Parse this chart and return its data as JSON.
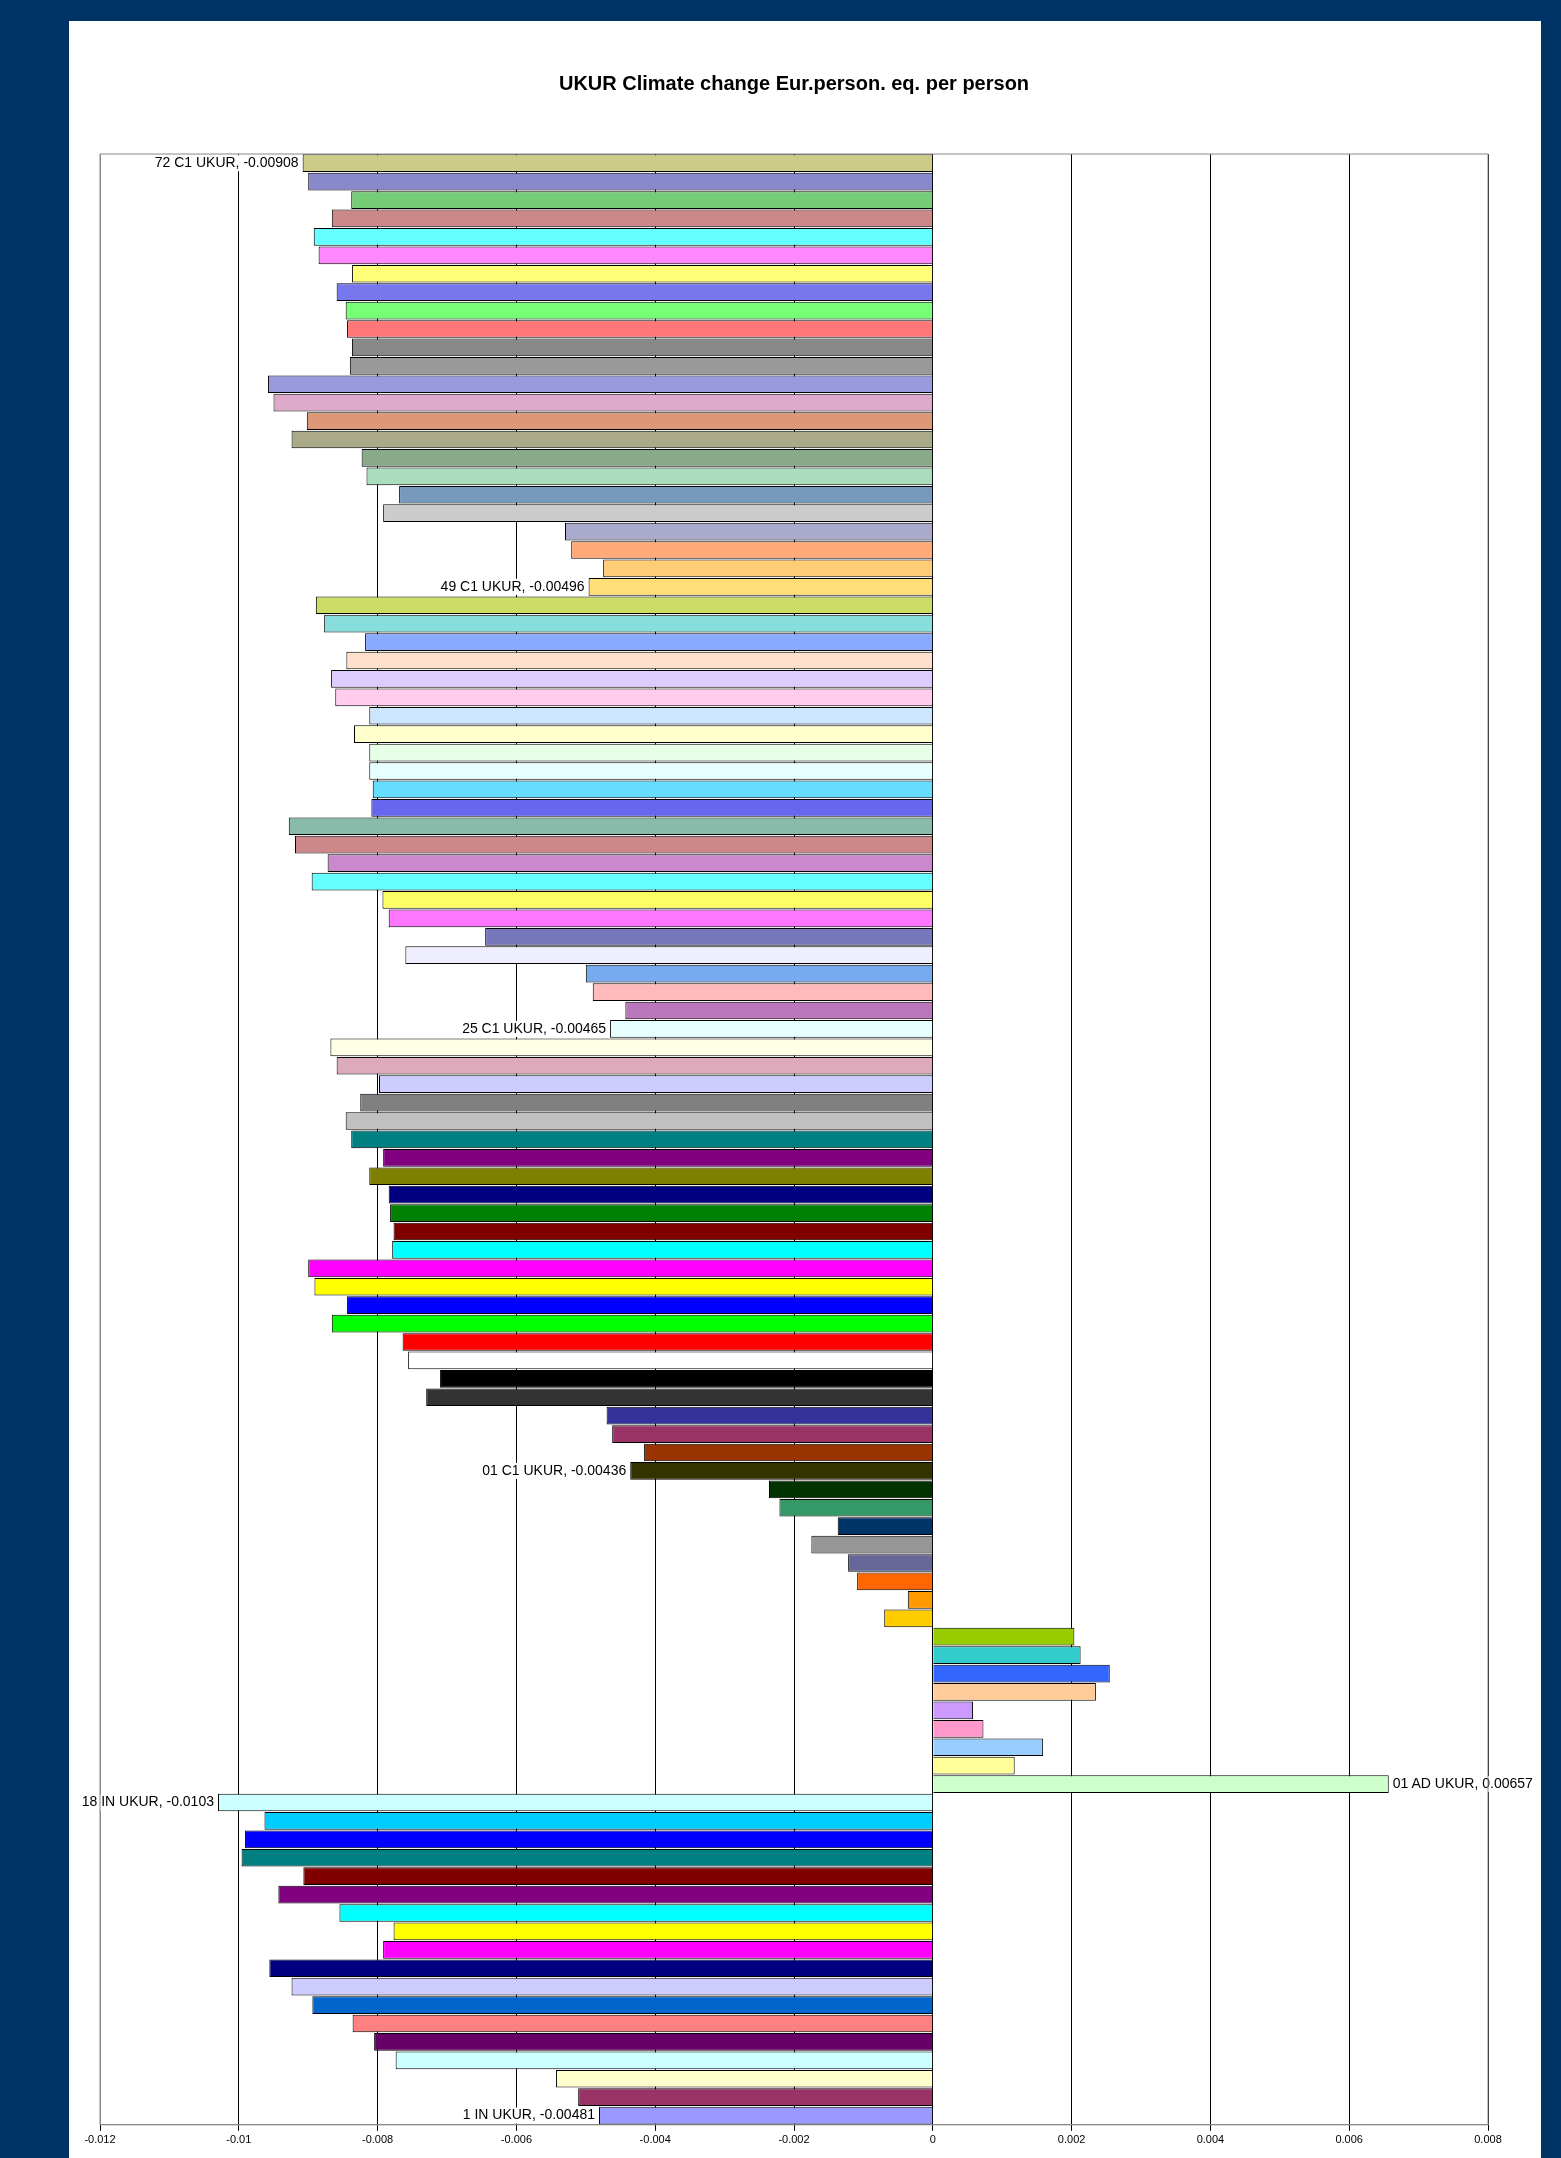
{
  "chart_data": {
    "type": "bar",
    "orientation": "horizontal",
    "title": "UKUR Climate change Eur.person. eq. per person",
    "categories": [
      null,
      null,
      null,
      null,
      null,
      null,
      null,
      null,
      null,
      null,
      null,
      null,
      null,
      null,
      null,
      null,
      null,
      null,
      null,
      null,
      null,
      null,
      null,
      null,
      null,
      null,
      null,
      null,
      null,
      null,
      null,
      null,
      null,
      null,
      null,
      null,
      null,
      null,
      null,
      null,
      null,
      null,
      null,
      null,
      null,
      null,
      null,
      null,
      null,
      null,
      null,
      null,
      null,
      null,
      null,
      null,
      null,
      null,
      null,
      null,
      null,
      null,
      null,
      null,
      null,
      null,
      null,
      null,
      null,
      null,
      null,
      null,
      null,
      null,
      null,
      null,
      null,
      null,
      null,
      null,
      null,
      null,
      null,
      null,
      null,
      null,
      null,
      null,
      null,
      null,
      null,
      null,
      null,
      null,
      null,
      null,
      null,
      null,
      null,
      null,
      null,
      null,
      null,
      null,
      null,
      null,
      null
    ],
    "values": [
      -0.00908,
      -0.009,
      -0.00838,
      -0.00866,
      -0.00892,
      -0.00885,
      -0.00837,
      -0.00859,
      -0.00846,
      -0.00844,
      -0.00837,
      -0.0084,
      -0.00958,
      -0.0095,
      -0.00902,
      -0.00924,
      -0.00823,
      -0.00816,
      -0.00769,
      -0.00792,
      -0.0053,
      -0.00521,
      -0.00475,
      -0.00496,
      -0.00889,
      -0.00877,
      -0.00818,
      -0.00845,
      -0.00867,
      -0.00861,
      -0.00812,
      -0.00834,
      -0.00812,
      -0.00812,
      -0.00807,
      -0.00809,
      -0.00928,
      -0.00919,
      -0.00872,
      -0.00895,
      -0.00793,
      -0.00784,
      -0.00645,
      -0.0076,
      -0.005,
      -0.0049,
      -0.00443,
      -0.00465,
      -0.00868,
      -0.00859,
      -0.00798,
      -0.00825,
      -0.00846,
      -0.00838,
      -0.00792,
      -0.00812,
      -0.00784,
      -0.00782,
      -0.00777,
      -0.00779,
      -0.009,
      -0.00891,
      -0.00844,
      -0.00866,
      -0.00764,
      -0.00756,
      -0.0071,
      -0.0073,
      -0.0047,
      -0.00462,
      -0.00416,
      -0.00436,
      -0.00236,
      -0.00221,
      -0.00137,
      -0.00175,
      -0.00122,
      -0.00109,
      -0.00036,
      -0.0007,
      0.00204,
      0.00213,
      0.00255,
      0.00235,
      0.00058,
      0.00073,
      0.00159,
      0.00118,
      0.00657,
      -0.0103,
      -0.00963,
      -0.00991,
      -0.00996,
      -0.00907,
      -0.00943,
      -0.00855,
      -0.00777,
      -0.00792,
      -0.00956,
      -0.00924,
      -0.00894,
      -0.00836,
      -0.00805,
      -0.00774,
      -0.00543,
      -0.00511,
      -0.00481
    ],
    "colors": [
      "#cccc88",
      "#8888cc",
      "#77cc77",
      "#cc8888",
      "#66ffff",
      "#ff88ff",
      "#ffff77",
      "#7777ee",
      "#77ff77",
      "#ff7777",
      "#888888",
      "#999999",
      "#9999dd",
      "#ddaacc",
      "#dd9977",
      "#aaaa88",
      "#88aa88",
      "#aaddbb",
      "#7799bb",
      "#cccccc",
      "#aaaacc",
      "#ffaa77",
      "#ffcc77",
      "#ffdd77",
      "#ccdd66",
      "#88dddd",
      "#88aaff",
      "#ffe0cc",
      "#ddccff",
      "#ffccee",
      "#cce6ff",
      "#ffffcc",
      "#e6ffe6",
      "#e6ffff",
      "#66ddff",
      "#6666ee",
      "#88bbaa",
      "#cc8888",
      "#cc88cc",
      "#66ffff",
      "#ffff66",
      "#ff77ff",
      "#7777bb",
      "#eeeeff",
      "#77aaee",
      "#ffbbbb",
      "#bb77bb",
      "#e6ffff",
      "#ffffe6",
      "#ddaabb",
      "#ccccff",
      "#808080",
      "#c0c0c0",
      "#008080",
      "#800080",
      "#808000",
      "#000080",
      "#008000",
      "#800000",
      "#00ffff",
      "#ff00ff",
      "#ffff00",
      "#0000ff",
      "#00ff00",
      "#ff0000",
      "#ffffff",
      "#000000",
      "#333333",
      "#333399",
      "#993366",
      "#993300",
      "#333300",
      "#003300",
      "#339966",
      "#003366",
      "#969696",
      "#666699",
      "#ff6600",
      "#ff9900",
      "#ffcc00",
      "#99cc00",
      "#33cccc",
      "#3366ff",
      "#ffcc99",
      "#cc99ff",
      "#ff99cc",
      "#99ccff",
      "#ffff99",
      "#ccffcc",
      "#ccffff",
      "#00ccff",
      "#0000ff",
      "#008080",
      "#800000",
      "#800080",
      "#00ffff",
      "#ffff00",
      "#ff00ff",
      "#000080",
      "#ccccff",
      "#0066cc",
      "#ff8080",
      "#660066",
      "#ccffff",
      "#ffffcc",
      "#993366",
      "#9999ff"
    ],
    "value_labels": [
      "72 C1 UKUR, -0.00908",
      null,
      null,
      null,
      null,
      null,
      null,
      null,
      null,
      null,
      null,
      null,
      null,
      null,
      null,
      null,
      null,
      null,
      null,
      null,
      null,
      null,
      null,
      "49 C1 UKUR, -0.00496",
      null,
      null,
      null,
      null,
      null,
      null,
      null,
      null,
      null,
      null,
      null,
      null,
      null,
      null,
      null,
      null,
      null,
      null,
      null,
      null,
      null,
      null,
      null,
      "25 C1 UKUR, -0.00465",
      null,
      null,
      null,
      null,
      null,
      null,
      null,
      null,
      null,
      null,
      null,
      null,
      null,
      null,
      null,
      null,
      null,
      null,
      null,
      null,
      null,
      null,
      null,
      "01 C1 UKUR, -0.00436",
      null,
      null,
      null,
      null,
      null,
      null,
      null,
      null,
      null,
      null,
      null,
      null,
      null,
      null,
      null,
      null,
      "01 AD UKUR, 0.00657",
      "18 IN UKUR, -0.0103",
      null,
      null,
      null,
      null,
      null,
      null,
      null,
      null,
      null,
      null,
      null,
      null,
      null,
      null,
      null,
      null,
      "1 IN UKUR, -0.00481"
    ],
    "xlim": [
      -0.012,
      0.008
    ],
    "xticks": [
      -0.012,
      -0.01,
      -0.008,
      -0.006,
      -0.004,
      -0.002,
      0,
      0.002,
      0.004,
      0.006,
      0.008
    ],
    "grid": "x",
    "legend": false,
    "tick_labels": "x"
  }
}
